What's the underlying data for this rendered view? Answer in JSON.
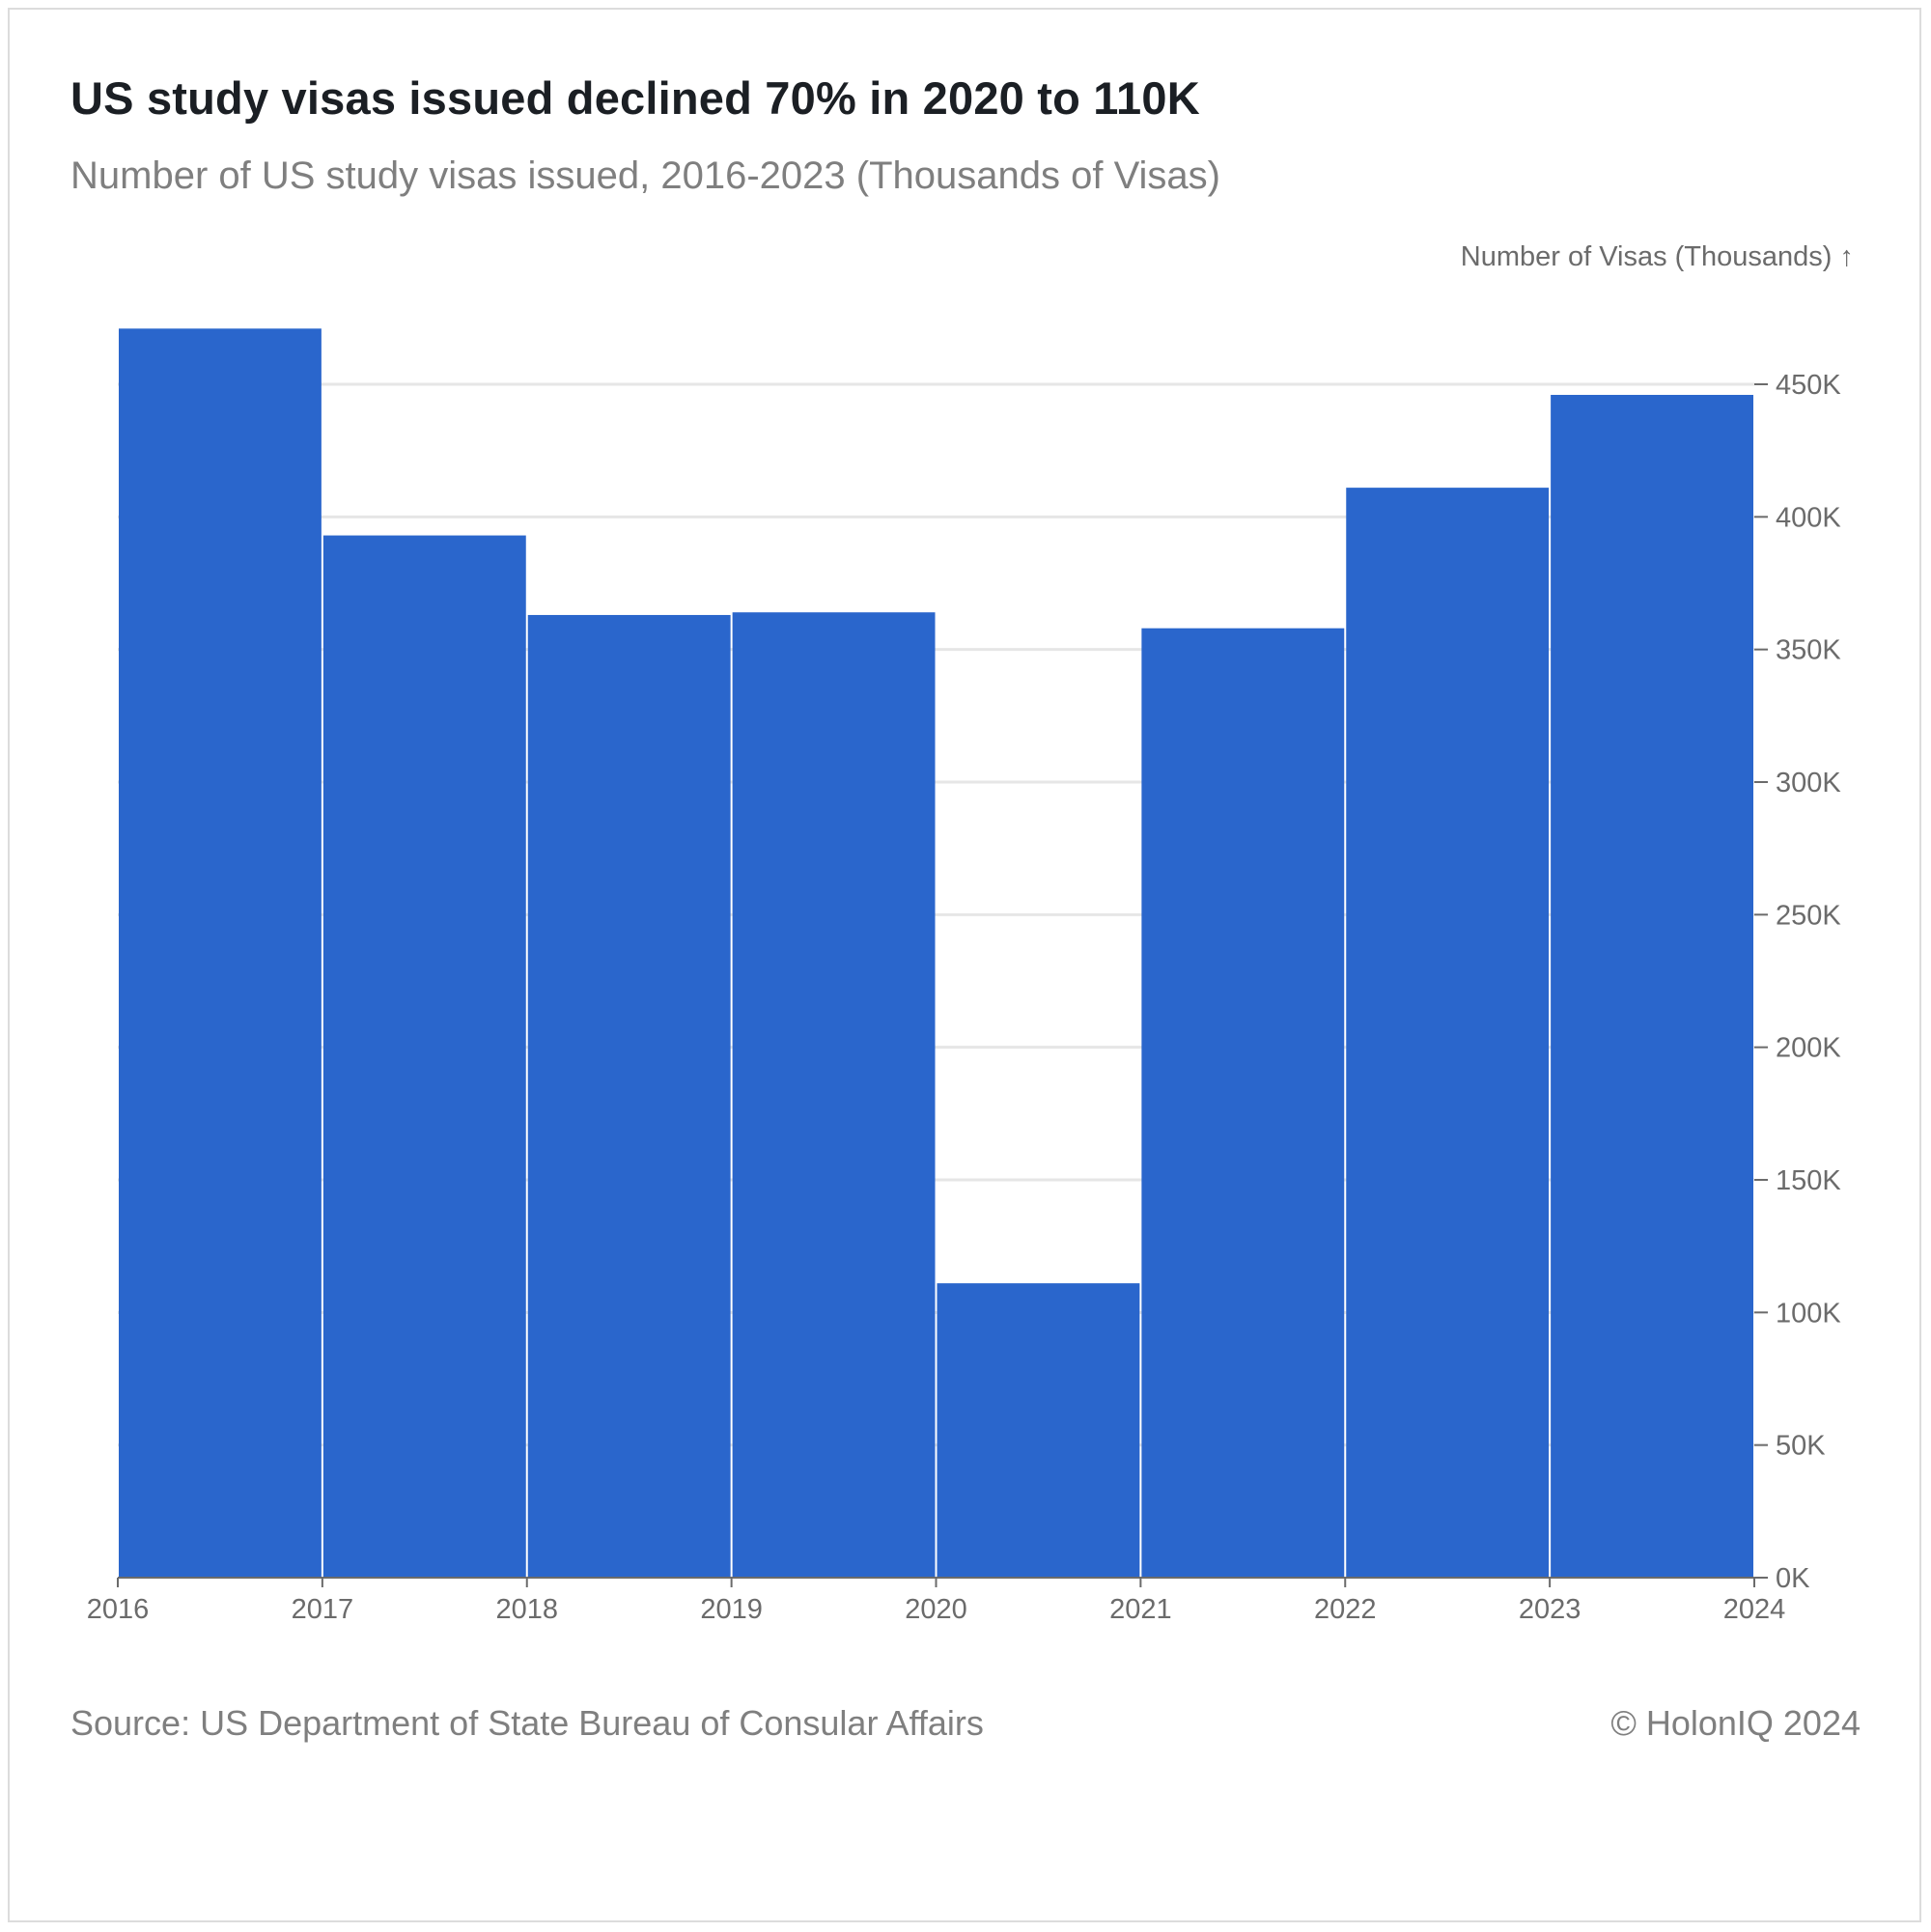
{
  "header": {
    "title": "US study visas issued declined 70% in 2020 to 110K",
    "subtitle": "Number of US study visas issued, 2016-2023 (Thousands of Visas)"
  },
  "footer": {
    "source": "Source: US Department of State Bureau of Consular Affairs",
    "copyright": "© HolonIQ 2024"
  },
  "chart_data": {
    "type": "bar",
    "title": "US study visas issued declined 70% in 2020 to 110K",
    "subtitle": "Number of US study visas issued, 2016-2023 (Thousands of Visas)",
    "ylabel": "Number of Visas (Thousands) ↑",
    "bar_color": "#2a66cc",
    "grid": true,
    "y_axis_position": "right",
    "categories": [
      "2016",
      "2017",
      "2018",
      "2019",
      "2020",
      "2021",
      "2022",
      "2023"
    ],
    "values": [
      471,
      393,
      363,
      364,
      111,
      358,
      411,
      446
    ],
    "x_tick_labels": [
      "2016",
      "2017",
      "2018",
      "2019",
      "2020",
      "2021",
      "2022",
      "2023",
      "2024"
    ],
    "y_ticks": [
      0,
      50,
      100,
      150,
      200,
      250,
      300,
      350,
      400,
      450
    ],
    "y_tick_labels": [
      "0K",
      "50K",
      "100K",
      "150K",
      "200K",
      "250K",
      "300K",
      "350K",
      "400K",
      "450K"
    ],
    "ylim": [
      0,
      475
    ]
  }
}
